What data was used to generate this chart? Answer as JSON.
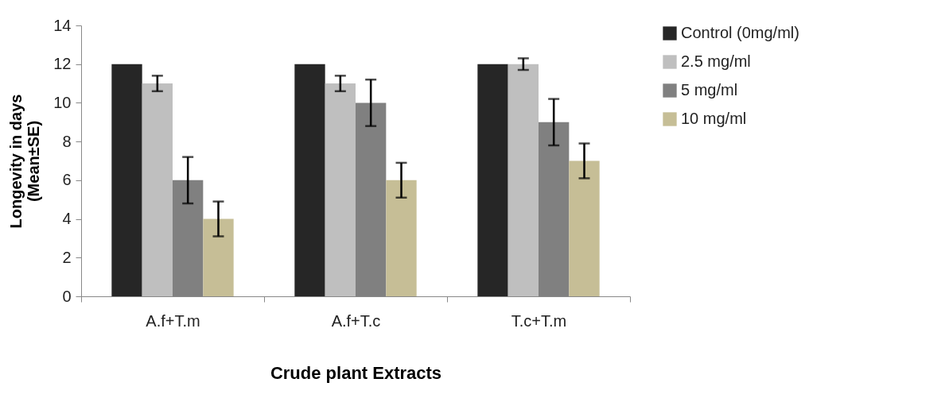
{
  "chart_data": {
    "type": "bar",
    "xlabel": "Crude plant Extracts",
    "ylabel": "Longevity in days\n(Mean±SE)",
    "categories": [
      "A.f+T.m",
      "A.f+T.c",
      "T.c+T.m"
    ],
    "series": [
      {
        "name": "Control (0mg/ml)",
        "color": "#262626",
        "values": [
          12,
          12,
          12
        ]
      },
      {
        "name": "2.5 mg/ml",
        "color": "#bfbfbf",
        "values": [
          11,
          11,
          12
        ],
        "errors": [
          0.4,
          0.4,
          0.3
        ]
      },
      {
        "name": "5 mg/ml",
        "color": "#808080",
        "values": [
          6,
          10,
          9
        ],
        "errors": [
          1.2,
          1.2,
          1.2
        ]
      },
      {
        "name": "10 mg/ml",
        "color": "#c6be96",
        "values": [
          4,
          6,
          7
        ],
        "errors": [
          0.9,
          0.9,
          0.9
        ]
      }
    ],
    "ylim": [
      0,
      14
    ],
    "yticks": [
      0,
      2,
      4,
      6,
      8,
      10,
      12,
      14
    ],
    "grid": false,
    "legend": "right"
  }
}
